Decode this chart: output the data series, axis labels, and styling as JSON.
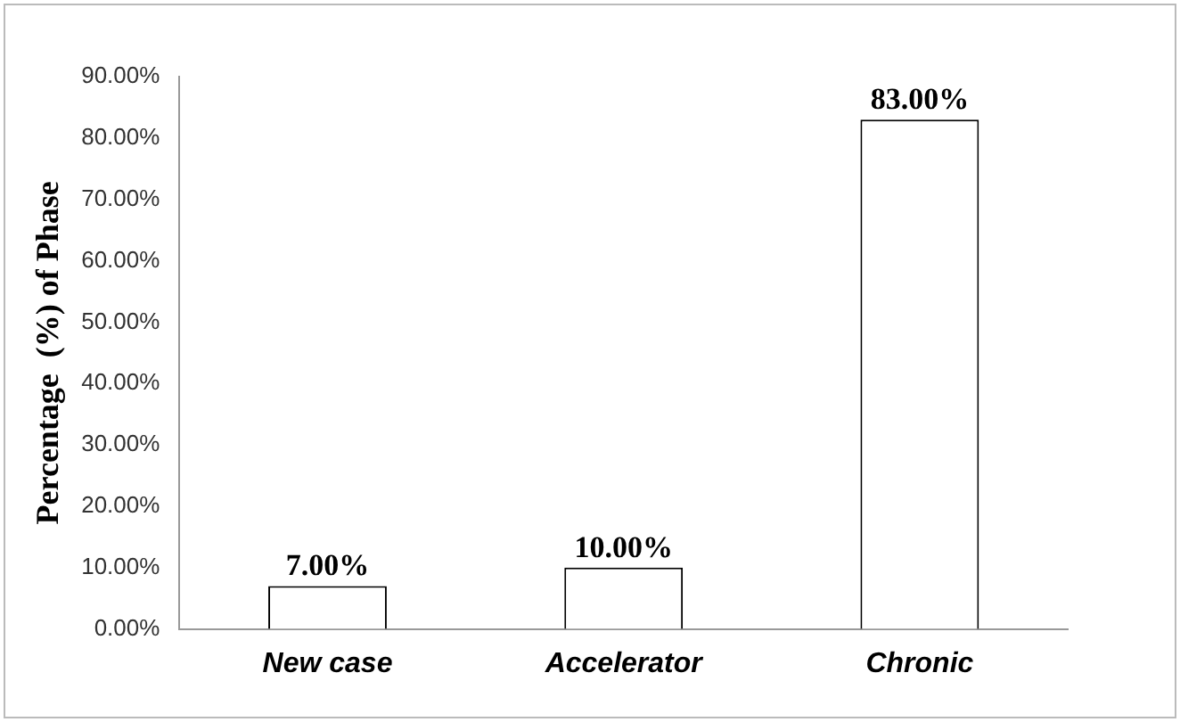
{
  "chart_data": {
    "type": "bar",
    "ylabel": "Percentage  (%) of Phase",
    "categories": [
      "New case",
      "Accelerator",
      "Chronic"
    ],
    "values": [
      7,
      10,
      83
    ],
    "color": "#ffffff",
    "value_labels": [
      "7.00%",
      "10.00%",
      "83.00%"
    ],
    "ylim": [
      0,
      90
    ],
    "yticks": [
      {
        "value": 0,
        "label": "0.00%"
      },
      {
        "value": 10,
        "label": "10.00%"
      },
      {
        "value": 20,
        "label": "20.00%"
      },
      {
        "value": 30,
        "label": "30.00%"
      },
      {
        "value": 40,
        "label": "40.00%"
      },
      {
        "value": 50,
        "label": "50.00%"
      },
      {
        "value": 60,
        "label": "60.00%"
      },
      {
        "value": 70,
        "label": "70.00%"
      },
      {
        "value": 80,
        "label": "80.00%"
      },
      {
        "value": 90,
        "label": "90.00%"
      }
    ],
    "grid": false,
    "legend": false
  }
}
